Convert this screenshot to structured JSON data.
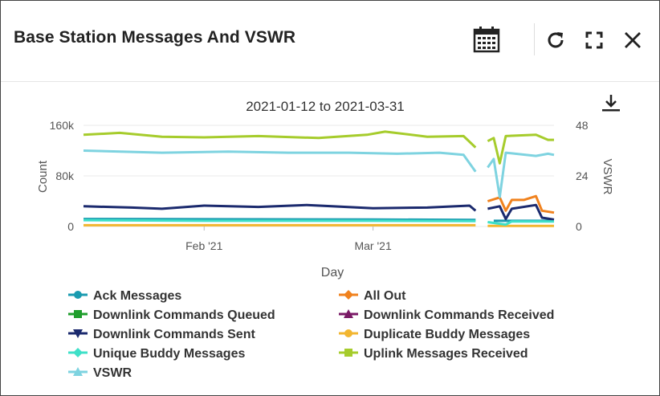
{
  "widget": {
    "title": "Base Station Messages And VSWR",
    "icons": [
      "calendar-icon",
      "refresh-icon",
      "expand-icon",
      "close-icon",
      "download-icon"
    ]
  },
  "chart_data": {
    "type": "line",
    "title": "2021-01-12 to 2021-03-31",
    "xlabel": "Day",
    "ylabel": "Count",
    "y2label": "VSWR",
    "x_range": [
      "2021-01-12",
      "2021-03-31"
    ],
    "x_ticks": [
      "Feb '21",
      "Mar '21"
    ],
    "y_ticks": [
      "0",
      "80k",
      "160k"
    ],
    "y2_ticks": [
      "0",
      "24",
      "48"
    ],
    "ylim": [
      0,
      160000
    ],
    "y2lim": [
      0,
      48
    ],
    "gap": [
      "2021-03-19",
      "2021-03-20"
    ],
    "grid": true,
    "legend_position": "bottom",
    "series": [
      {
        "name": "Ack Messages",
        "axis": "left",
        "color": "#1a9bb0",
        "marker": "circle",
        "dates": [
          "2021-01-12",
          "2021-02-01",
          "2021-03-01",
          "2021-03-18",
          "2021-03-21",
          "2021-03-31"
        ],
        "values": [
          12000,
          11500,
          11000,
          10500,
          9000,
          9000
        ]
      },
      {
        "name": "All Out",
        "axis": "left",
        "color": "#f0821e",
        "marker": "diamond",
        "dates": [
          "2021-03-20",
          "2021-03-22",
          "2021-03-23",
          "2021-03-24",
          "2021-03-26",
          "2021-03-28",
          "2021-03-29",
          "2021-03-31"
        ],
        "values": [
          40000,
          46000,
          25000,
          42000,
          42000,
          48000,
          25000,
          22000
        ]
      },
      {
        "name": "Downlink Commands Queued",
        "axis": "left",
        "color": "#1f9e2c",
        "marker": "square",
        "dates": [
          "2021-01-12",
          "2021-03-31"
        ],
        "values": [
          0,
          0
        ]
      },
      {
        "name": "Downlink Commands Received",
        "axis": "left",
        "color": "#7a1a66",
        "marker": "triangle-up",
        "dates": [
          "2021-01-12",
          "2021-03-31"
        ],
        "values": [
          0,
          0
        ]
      },
      {
        "name": "Downlink Commands Sent",
        "axis": "left",
        "color": "#1b2a6e",
        "marker": "triangle-down",
        "dates": [
          "2021-01-12",
          "2021-01-20",
          "2021-01-25",
          "2021-02-01",
          "2021-02-10",
          "2021-02-18",
          "2021-03-01",
          "2021-03-10",
          "2021-03-17",
          "2021-03-18",
          "2021-03-20",
          "2021-03-22",
          "2021-03-23",
          "2021-03-24",
          "2021-03-28",
          "2021-03-29",
          "2021-03-31"
        ],
        "values": [
          32000,
          30000,
          28000,
          33000,
          31000,
          34000,
          29000,
          30000,
          33000,
          25000,
          28000,
          32000,
          12000,
          28000,
          34000,
          14000,
          11000
        ]
      },
      {
        "name": "Duplicate Buddy Messages",
        "axis": "left",
        "color": "#f2b630",
        "marker": "circle",
        "dates": [
          "2021-01-12",
          "2021-03-18",
          "2021-03-20",
          "2021-03-31"
        ],
        "values": [
          2000,
          2000,
          1000,
          1000
        ]
      },
      {
        "name": "Unique Buddy Messages",
        "axis": "left",
        "color": "#3ee0c8",
        "marker": "diamond",
        "dates": [
          "2021-01-12",
          "2021-02-01",
          "2021-03-01",
          "2021-03-18",
          "2021-03-20",
          "2021-03-23",
          "2021-03-24",
          "2021-03-31"
        ],
        "values": [
          10000,
          9000,
          9000,
          8500,
          7000,
          3000,
          8000,
          8000
        ]
      },
      {
        "name": "Uplink Messages Received",
        "axis": "left",
        "color": "#a6cc2c",
        "marker": "square",
        "dates": [
          "2021-01-12",
          "2021-01-18",
          "2021-01-25",
          "2021-02-01",
          "2021-02-10",
          "2021-02-20",
          "2021-02-28",
          "2021-03-03",
          "2021-03-10",
          "2021-03-16",
          "2021-03-18",
          "2021-03-20",
          "2021-03-21",
          "2021-03-22",
          "2021-03-23",
          "2021-03-28",
          "2021-03-30",
          "2021-03-31"
        ],
        "values": [
          145000,
          148000,
          142000,
          141000,
          143000,
          140000,
          145000,
          150000,
          142000,
          143000,
          125000,
          135000,
          140000,
          100000,
          143000,
          145000,
          137000,
          137000
        ]
      },
      {
        "name": "VSWR",
        "axis": "right",
        "color": "#7ed3e0",
        "marker": "triangle-up",
        "dates": [
          "2021-01-12",
          "2021-01-25",
          "2021-02-05",
          "2021-02-15",
          "2021-02-25",
          "2021-03-05",
          "2021-03-12",
          "2021-03-16",
          "2021-03-18",
          "2021-03-20",
          "2021-03-21",
          "2021-03-22",
          "2021-03-23",
          "2021-03-28",
          "2021-03-30",
          "2021-03-31"
        ],
        "values": [
          36,
          35,
          35.5,
          35,
          35,
          34.5,
          35,
          34,
          26,
          28,
          32,
          14,
          35,
          33.5,
          34.5,
          34
        ]
      }
    ]
  }
}
